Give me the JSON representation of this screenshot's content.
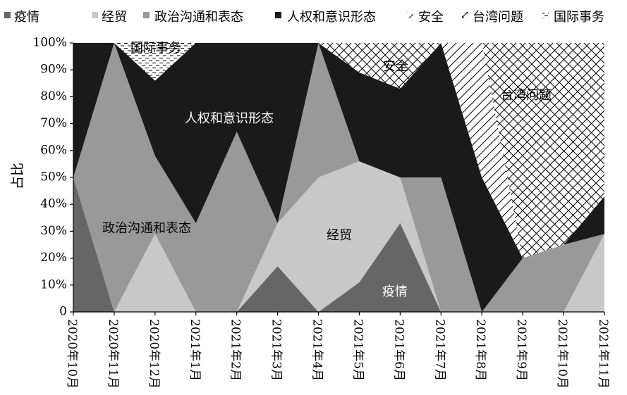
{
  "chart_data": {
    "type": "area",
    "stacked": true,
    "normalized": true,
    "ylabel": "占比",
    "xlabel": "",
    "ylim": [
      0,
      100
    ],
    "y_ticks": [
      "0",
      "10%",
      "20%",
      "30%",
      "40%",
      "50%",
      "60%",
      "70%",
      "80%",
      "90%",
      "100%"
    ],
    "categories": [
      "2020年10月",
      "2020年11月",
      "2020年12月",
      "2021年1月",
      "2021年2月",
      "2021年3月",
      "2021年4月",
      "2021年5月",
      "2021年6月",
      "2021年7月",
      "2021年8月",
      "2021年9月",
      "2021年10月",
      "2021年11月"
    ],
    "legend_position": "top",
    "series": [
      {
        "name": "疫情",
        "values": [
          50,
          0,
          0,
          0,
          0,
          17,
          0,
          11,
          33,
          0,
          0,
          0,
          0,
          0
        ],
        "color": "#666666",
        "pattern": "solid"
      },
      {
        "name": "经贸",
        "values": [
          0,
          0,
          29,
          0,
          0,
          16,
          50,
          45,
          17,
          0,
          0,
          0,
          0,
          29
        ],
        "color": "#c8c8c8",
        "pattern": "solid"
      },
      {
        "name": "政治沟通和表态",
        "values": [
          0,
          100,
          29,
          33,
          67,
          0,
          50,
          0,
          0,
          50,
          0,
          20,
          25,
          0
        ],
        "color": "#999999",
        "pattern": "solid"
      },
      {
        "name": "人权和意识形态",
        "values": [
          50,
          0,
          28,
          67,
          33,
          67,
          0,
          33,
          33,
          50,
          50,
          0,
          0,
          14
        ],
        "color": "#1a1a1a",
        "pattern": "solid"
      },
      {
        "name": "安全",
        "values": [
          0,
          0,
          0,
          0,
          0,
          0,
          0,
          0,
          0,
          0,
          50,
          0,
          0,
          0
        ],
        "color": "#000000",
        "pattern": "diagonal"
      },
      {
        "name": "台湾问题",
        "values": [
          0,
          0,
          0,
          0,
          0,
          0,
          0,
          11,
          17,
          0,
          0,
          80,
          75,
          57
        ],
        "color": "#000000",
        "pattern": "crosshatch"
      },
      {
        "name": "国际事务",
        "values": [
          0,
          0,
          14,
          0,
          0,
          0,
          0,
          0,
          0,
          0,
          0,
          0,
          0,
          0
        ],
        "color": "#000000",
        "pattern": "dashes"
      }
    ],
    "annotations": [
      "国际事务",
      "安全",
      "人权和意识形态",
      "台湾问题",
      "政治沟通和表态",
      "经贸",
      "疫情"
    ]
  }
}
